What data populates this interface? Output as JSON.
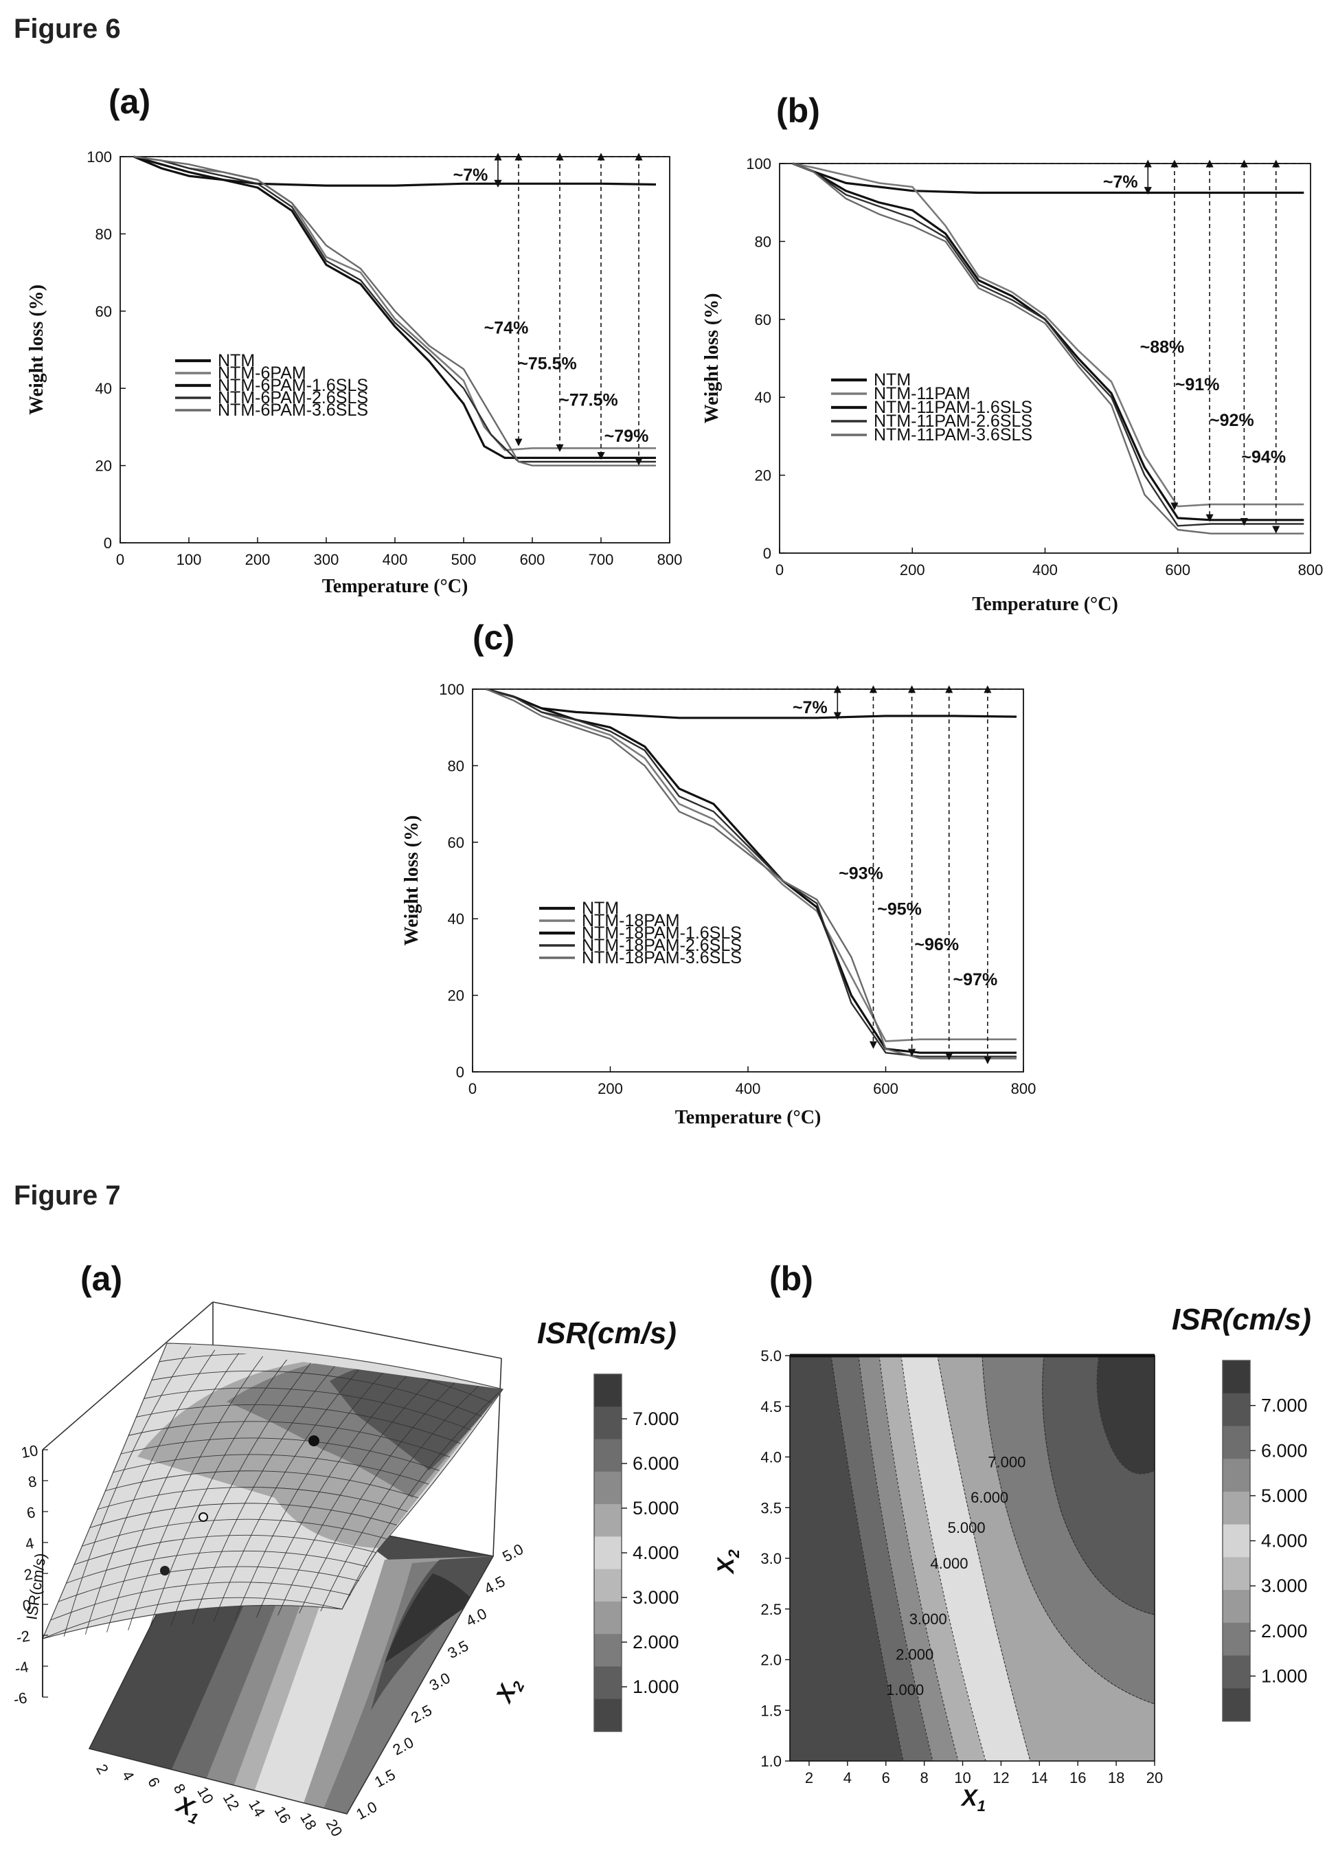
{
  "figure6": {
    "title": "Figure 6",
    "panels": [
      {
        "label": "(a)",
        "xlabel": "Temperature (°C)",
        "ylabel": "Weight loss (%)",
        "xticks": [
          "0",
          "100",
          "200",
          "300",
          "400",
          "500",
          "600",
          "700",
          "800"
        ],
        "yticks": [
          "0",
          "20",
          "40",
          "60",
          "80",
          "100"
        ],
        "legend": [
          "NTM",
          "NTM-6PAM",
          "NTM-6PAM-1.6SLS",
          "NTM-6PAM-2.6SLS",
          "NTM-6PAM-3.6SLS"
        ],
        "annotations": [
          "~7%",
          "~74%",
          "~75.5%",
          "~77.5%",
          "~79%"
        ]
      },
      {
        "label": "(b)",
        "xlabel": "Temperature (°C)",
        "ylabel": "Weight loss (%)",
        "xticks": [
          "0",
          "200",
          "400",
          "600",
          "800"
        ],
        "yticks": [
          "0",
          "20",
          "40",
          "60",
          "80",
          "100"
        ],
        "legend": [
          "NTM",
          "NTM-11PAM",
          "NTM-11PAM-1.6SLS",
          "NTM-11PAM-2.6SLS",
          "NTM-11PAM-3.6SLS"
        ],
        "annotations": [
          "~7%",
          "~88%",
          "~91%",
          "~92%",
          "~94%"
        ]
      },
      {
        "label": "(c)",
        "xlabel": "Temperature (°C)",
        "ylabel": "Weight loss (%)",
        "xticks": [
          "0",
          "200",
          "400",
          "600",
          "800"
        ],
        "yticks": [
          "0",
          "20",
          "40",
          "60",
          "80",
          "100"
        ],
        "legend": [
          "NTM",
          "NTM-18PAM",
          "NTM-18PAM-1.6SLS",
          "NTM-18PAM-2.6SLS",
          "NTM-18PAM-3.6SLS"
        ],
        "annotations": [
          "~7%",
          "~93%",
          "~95%",
          "~96%",
          "~97%"
        ]
      }
    ]
  },
  "figure7": {
    "title": "Figure 7",
    "panel_a": {
      "label": "(a)",
      "zlabel": "ISR(cm/s)",
      "x1_label": "X",
      "x1_sub": "1",
      "x2_label": "X",
      "x2_sub": "2",
      "zticks": [
        "10",
        "8",
        "6",
        "4",
        "2",
        "0",
        "-2",
        "-4",
        "-6"
      ],
      "x1ticks": [
        "2",
        "4",
        "6",
        "8",
        "10",
        "12",
        "14",
        "16",
        "18",
        "20"
      ],
      "x2ticks": [
        "1.0",
        "1.5",
        "2.0",
        "2.5",
        "3.0",
        "3.5",
        "4.0",
        "4.5",
        "5.0"
      ],
      "colorbar_title": "ISR(cm/s)",
      "colorbar_ticks": [
        "7.000",
        "6.000",
        "5.000",
        "4.000",
        "3.000",
        "2.000",
        "1.000"
      ]
    },
    "panel_b": {
      "label": "(b)",
      "x_label": "X",
      "x_sub": "1",
      "y_label": "X",
      "y_sub": "2",
      "xticks": [
        "2",
        "4",
        "6",
        "8",
        "10",
        "12",
        "14",
        "16",
        "18",
        "20"
      ],
      "yticks": [
        "1.0",
        "1.5",
        "2.0",
        "2.5",
        "3.0",
        "3.5",
        "4.0",
        "4.5",
        "5.0"
      ],
      "contour_labels": [
        "1.000",
        "2.000",
        "3.000",
        "4.000",
        "5.000",
        "6.000",
        "7.000"
      ],
      "colorbar_title": "ISR(cm/s)",
      "colorbar_ticks": [
        "7.000",
        "6.000",
        "5.000",
        "4.000",
        "3.000",
        "2.000",
        "1.000"
      ]
    }
  },
  "chart_data": [
    {
      "type": "line",
      "xlabel": "Temperature (°C)",
      "ylabel": "Weight loss (%)",
      "xlim": [
        0,
        800
      ],
      "ylim": [
        0,
        100
      ],
      "legend_position": "middle-left",
      "series": [
        {
          "name": "NTM",
          "x": [
            20,
            60,
            100,
            150,
            200,
            300,
            400,
            500,
            600,
            700,
            780
          ],
          "values": [
            100,
            97,
            95,
            94,
            93,
            92.5,
            92.5,
            93,
            93,
            93,
            92.8
          ]
        },
        {
          "name": "NTM-6PAM",
          "x": [
            20,
            60,
            100,
            150,
            200,
            250,
            300,
            350,
            400,
            450,
            500,
            530,
            560,
            600,
            700,
            780
          ],
          "values": [
            100,
            99,
            97,
            96,
            94,
            88,
            74,
            70,
            58,
            50,
            42,
            30,
            24,
            24.5,
            24.5,
            24.5
          ]
        },
        {
          "name": "NTM-6PAM-1.6SLS",
          "x": [
            20,
            60,
            100,
            150,
            200,
            250,
            300,
            350,
            400,
            450,
            500,
            530,
            560,
            600,
            700,
            780
          ],
          "values": [
            100,
            98,
            96,
            94,
            92,
            86,
            72,
            67,
            56,
            47,
            36,
            25,
            22,
            22,
            22,
            22
          ]
        },
        {
          "name": "NTM-6PAM-2.6SLS",
          "x": [
            20,
            60,
            100,
            150,
            200,
            250,
            300,
            350,
            400,
            450,
            500,
            540,
            580,
            600,
            700,
            780
          ],
          "values": [
            100,
            99,
            97,
            95,
            93,
            87,
            73,
            68,
            57,
            49,
            40,
            28,
            21,
            21,
            21,
            21
          ]
        },
        {
          "name": "NTM-6PAM-3.6SLS",
          "x": [
            20,
            60,
            100,
            150,
            200,
            250,
            300,
            350,
            400,
            450,
            500,
            550,
            580,
            600,
            700,
            780
          ],
          "values": [
            100,
            99,
            98,
            96,
            94,
            88,
            77,
            71,
            60,
            51,
            45,
            30,
            21,
            20,
            20,
            20
          ]
        }
      ],
      "annotations": [
        {
          "text": "~7%",
          "x": 550,
          "from": 100,
          "to": 93
        },
        {
          "text": "~74%",
          "x": 580,
          "from": 100,
          "to": 26
        },
        {
          "text": "~75.5%",
          "x": 640,
          "from": 100,
          "to": 24.5
        },
        {
          "text": "~77.5%",
          "x": 700,
          "from": 100,
          "to": 22.5
        },
        {
          "text": "~79%",
          "x": 755,
          "from": 100,
          "to": 21
        }
      ]
    },
    {
      "type": "line",
      "xlabel": "Temperature (°C)",
      "ylabel": "Weight loss (%)",
      "xlim": [
        0,
        800
      ],
      "ylim": [
        0,
        100
      ],
      "legend_position": "middle-left",
      "series": [
        {
          "name": "NTM",
          "x": [
            20,
            50,
            100,
            150,
            200,
            300,
            400,
            500,
            600,
            700,
            790
          ],
          "values": [
            100,
            98,
            95,
            94,
            93,
            92.5,
            92.5,
            92.5,
            92.5,
            92.5,
            92.5
          ]
        },
        {
          "name": "NTM-11PAM",
          "x": [
            20,
            50,
            100,
            150,
            200,
            250,
            300,
            350,
            400,
            450,
            500,
            550,
            600,
            650,
            700,
            790
          ],
          "values": [
            100,
            99,
            97,
            95,
            94,
            84,
            71,
            67,
            61,
            52,
            44,
            25,
            12,
            12.5,
            12.5,
            12.5
          ]
        },
        {
          "name": "NTM-11PAM-1.6SLS",
          "x": [
            20,
            50,
            100,
            150,
            200,
            250,
            300,
            350,
            400,
            450,
            500,
            550,
            600,
            650,
            700,
            790
          ],
          "values": [
            100,
            98,
            93,
            90,
            88,
            82,
            70,
            66,
            60,
            50,
            41,
            22,
            9,
            8.5,
            8.5,
            8.5
          ]
        },
        {
          "name": "NTM-11PAM-2.6SLS",
          "x": [
            20,
            50,
            100,
            150,
            200,
            250,
            300,
            350,
            400,
            450,
            500,
            550,
            600,
            650,
            700,
            790
          ],
          "values": [
            100,
            98,
            92,
            89,
            86,
            81,
            69,
            65,
            60,
            49,
            40,
            20,
            7,
            7.5,
            7.5,
            7.5
          ]
        },
        {
          "name": "NTM-11PAM-3.6SLS",
          "x": [
            20,
            50,
            100,
            150,
            200,
            250,
            300,
            350,
            400,
            450,
            500,
            550,
            600,
            650,
            700,
            790
          ],
          "values": [
            100,
            98,
            91,
            87,
            84,
            80,
            68,
            64,
            59,
            48,
            38,
            15,
            6,
            5,
            5,
            5
          ]
        }
      ],
      "annotations": [
        {
          "text": "~7%",
          "x": 555,
          "from": 100,
          "to": 93
        },
        {
          "text": "~88%",
          "x": 595,
          "from": 100,
          "to": 12
        },
        {
          "text": "~91%",
          "x": 648,
          "from": 100,
          "to": 9
        },
        {
          "text": "~92%",
          "x": 700,
          "from": 100,
          "to": 8
        },
        {
          "text": "~94%",
          "x": 748,
          "from": 100,
          "to": 6
        }
      ]
    },
    {
      "type": "line",
      "xlabel": "Temperature (°C)",
      "ylabel": "Weight loss (%)",
      "xlim": [
        0,
        800
      ],
      "ylim": [
        0,
        100
      ],
      "legend_position": "lower-left",
      "series": [
        {
          "name": "NTM",
          "x": [
            20,
            60,
            100,
            150,
            200,
            300,
            400,
            500,
            600,
            700,
            790
          ],
          "values": [
            100,
            98,
            95,
            94,
            93.5,
            92.5,
            92.5,
            92.5,
            93,
            93,
            92.8
          ]
        },
        {
          "name": "NTM-18PAM",
          "x": [
            20,
            60,
            100,
            150,
            200,
            250,
            300,
            350,
            400,
            450,
            500,
            550,
            600,
            650,
            700,
            790
          ],
          "values": [
            100,
            98,
            94,
            91,
            88,
            82,
            70,
            66,
            58,
            49,
            42,
            25,
            8,
            8.5,
            8.5,
            8.5
          ]
        },
        {
          "name": "NTM-18PAM-1.6SLS",
          "x": [
            20,
            60,
            100,
            150,
            200,
            250,
            300,
            350,
            400,
            450,
            500,
            550,
            600,
            650,
            700,
            790
          ],
          "values": [
            100,
            98,
            95,
            92,
            90,
            85,
            74,
            70,
            60,
            50,
            43,
            20,
            6,
            5,
            5,
            5
          ]
        },
        {
          "name": "NTM-18PAM-2.6SLS",
          "x": [
            20,
            60,
            100,
            150,
            200,
            250,
            300,
            350,
            400,
            450,
            500,
            550,
            600,
            650,
            700,
            790
          ],
          "values": [
            100,
            98,
            94,
            92,
            89,
            84,
            72,
            68,
            59,
            50,
            44,
            18,
            5,
            4,
            4,
            4
          ]
        },
        {
          "name": "NTM-18PAM-3.6SLS",
          "x": [
            20,
            60,
            100,
            150,
            200,
            250,
            300,
            350,
            400,
            450,
            500,
            550,
            600,
            650,
            700,
            790
          ],
          "values": [
            100,
            97,
            93,
            90,
            87,
            80,
            68,
            64,
            57,
            50,
            45,
            30,
            6,
            3.5,
            3.5,
            3.5
          ]
        }
      ],
      "annotations": [
        {
          "text": "~7%",
          "x": 530,
          "from": 100,
          "to": 93
        },
        {
          "text": "~93%",
          "x": 582,
          "from": 100,
          "to": 7
        },
        {
          "text": "~95%",
          "x": 638,
          "from": 100,
          "to": 5
        },
        {
          "text": "~96%",
          "x": 692,
          "from": 100,
          "to": 4
        },
        {
          "text": "~97%",
          "x": 748,
          "from": 100,
          "to": 3
        }
      ]
    },
    {
      "type": "heatmap",
      "xlabel": "X1",
      "ylabel": "X2",
      "zlabel": "ISR(cm/s)",
      "xlim": [
        1,
        20
      ],
      "ylim": [
        1.0,
        5.0
      ],
      "zlim": [
        -6,
        10
      ],
      "levels": [
        1,
        2,
        3,
        4,
        5,
        6,
        7
      ],
      "view": "3d-surface"
    },
    {
      "type": "heatmap",
      "xlabel": "X1",
      "ylabel": "X2",
      "xlim": [
        1,
        20
      ],
      "ylim": [
        1.0,
        5.0
      ],
      "levels": [
        1,
        2,
        3,
        4,
        5,
        6,
        7
      ],
      "view": "contour"
    }
  ]
}
